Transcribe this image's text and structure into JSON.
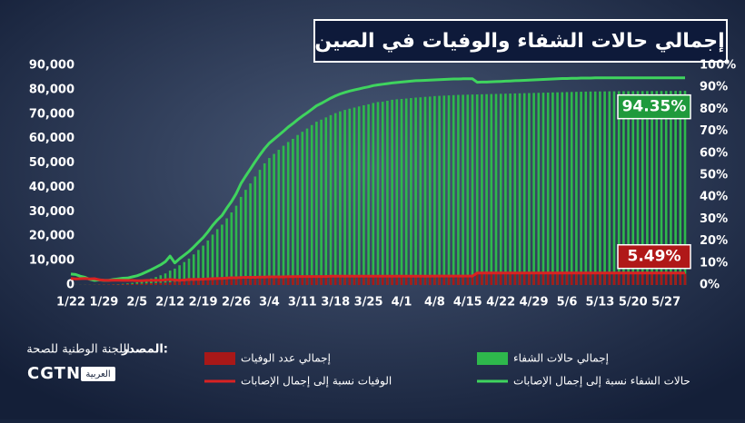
{
  "chart_data": {
    "type": "combo",
    "title": "إجمالي حالات الشفاء والوفيات في الصين",
    "source_label": "المصدر:",
    "source": "اللجنة الوطنية للصحة",
    "logo": "CGTN",
    "logo_sub": "العربية",
    "categories": [
      "1/22",
      null,
      null,
      null,
      null,
      null,
      null,
      "1/29",
      null,
      null,
      null,
      null,
      null,
      null,
      "2/5",
      null,
      null,
      null,
      null,
      null,
      null,
      "2/12",
      null,
      null,
      null,
      null,
      null,
      null,
      "2/19",
      null,
      null,
      null,
      null,
      null,
      null,
      "2/26",
      null,
      null,
      null,
      null,
      null,
      null,
      "3/4",
      null,
      null,
      null,
      null,
      null,
      null,
      "3/11",
      null,
      null,
      null,
      null,
      null,
      null,
      "3/18",
      null,
      null,
      null,
      null,
      null,
      null,
      "3/25",
      null,
      null,
      null,
      null,
      null,
      null,
      "4/1",
      null,
      null,
      null,
      null,
      null,
      null,
      "4/8",
      null,
      null,
      null,
      null,
      null,
      null,
      "4/15",
      null,
      null,
      null,
      null,
      null,
      null,
      "4/22",
      null,
      null,
      null,
      null,
      null,
      null,
      "4/29",
      null,
      null,
      null,
      null,
      null,
      null,
      "5/6",
      null,
      null,
      null,
      null,
      null,
      null,
      "5/13",
      null,
      null,
      null,
      null,
      null,
      null,
      "5/20",
      null,
      null,
      null,
      null,
      null,
      null,
      "5/27",
      null,
      null,
      null,
      null
    ],
    "series": [
      {
        "name": "إجمالي حالات الشفاء",
        "type": "bar",
        "color": "#2eb84c",
        "values": [
          28,
          34,
          38,
          49,
          51,
          60,
          103,
          126,
          171,
          243,
          328,
          475,
          632,
          892,
          1153,
          1540,
          2050,
          2649,
          3281,
          3996,
          4740,
          5911,
          6723,
          8096,
          9419,
          10844,
          12552,
          14376,
          16155,
          18264,
          20659,
          22888,
          24734,
          27323,
          29745,
          32495,
          36117,
          39002,
          41625,
          44462,
          47204,
          49856,
          52045,
          53726,
          55404,
          57065,
          58600,
          59897,
          61475,
          62793,
          64111,
          65541,
          66911,
          67749,
          68679,
          69601,
          70420,
          71150,
          71740,
          72244,
          72703,
          73159,
          73650,
          74051,
          74600,
          74978,
          75100,
          75500,
          75900,
          76100,
          76238,
          76400,
          76600,
          76800,
          76900,
          77100,
          77200,
          77410,
          77500,
          77600,
          77700,
          77800,
          77900,
          77950,
          78000,
          78050,
          78100,
          78150,
          78200,
          78250,
          78300,
          78350,
          78400,
          78450,
          78500,
          78550,
          78600,
          78650,
          78700,
          78750,
          78800,
          78850,
          78900,
          78950,
          79000,
          79050,
          79100,
          79150,
          79200,
          79250,
          79280,
          79300,
          79320,
          79340,
          79360,
          79380,
          79400,
          79410,
          79420,
          79430,
          79440,
          79450,
          79460,
          79470,
          79480,
          79490,
          79500,
          79520,
          79540,
          79560,
          79570
        ]
      },
      {
        "name": "إجمالي عدد الوفيات",
        "type": "bar",
        "color": "#a81818",
        "values": [
          17,
          18,
          26,
          42,
          56,
          82,
          106,
          132,
          170,
          213,
          259,
          304,
          361,
          425,
          490,
          563,
          636,
          722,
          811,
          908,
          1016,
          1113,
          1367,
          1380,
          1523,
          1665,
          1770,
          1868,
          2004,
          2118,
          2236,
          2345,
          2442,
          2592,
          2663,
          2715,
          2744,
          2788,
          2835,
          2870,
          2912,
          2943,
          2981,
          3012,
          3042,
          3070,
          3097,
          3119,
          3136,
          3158,
          3169,
          3176,
          3189,
          3199,
          3213,
          3226,
          3237,
          3245,
          3249,
          3253,
          3259,
          3270,
          3277,
          3281,
          3287,
          3292,
          3295,
          3300,
          3304,
          3305,
          3312,
          3318,
          3322,
          3326,
          3330,
          3331,
          3333,
          3335,
          3337,
          3339,
          3340,
          3341,
          3342,
          3344,
          3345,
          3346,
          4632,
          4632,
          4632,
          4632,
          4632,
          4632,
          4632,
          4632,
          4632,
          4632,
          4632,
          4633,
          4633,
          4633,
          4633,
          4633,
          4633,
          4633,
          4633,
          4633,
          4633,
          4633,
          4633,
          4633,
          4633,
          4633,
          4633,
          4633,
          4634,
          4634,
          4634,
          4634,
          4634,
          4634,
          4634,
          4634,
          4634,
          4634,
          4634,
          4634,
          4634,
          4634,
          4634,
          4634,
          4634
        ]
      },
      {
        "name": "حالات الشفاء نسبة إلى إجمال الإصابات",
        "type": "line",
        "axis": "y2",
        "color": "#3fd45e",
        "end_label": "94.35%",
        "label_color": "#1f9a3c",
        "values": [
          5.0,
          4.8,
          4.0,
          3.5,
          2.6,
          2.1,
          2.3,
          2.1,
          2.1,
          2.5,
          2.8,
          3.1,
          3.2,
          3.7,
          4.2,
          5.0,
          6.0,
          7.0,
          8.1,
          9.2,
          10.6,
          13.2,
          10.1,
          12.0,
          13.6,
          15.3,
          17.3,
          19.5,
          21.6,
          24.2,
          27.1,
          29.6,
          31.7,
          35.0,
          38.0,
          41.6,
          46.2,
          49.6,
          52.8,
          56.1,
          59.2,
          62.1,
          64.6,
          66.4,
          68.2,
          70.0,
          71.9,
          73.5,
          75.3,
          76.9,
          78.4,
          80.0,
          81.6,
          82.7,
          83.9,
          85.1,
          86.1,
          87.0,
          87.7,
          88.3,
          88.8,
          89.3,
          89.8,
          90.2,
          90.8,
          91.1,
          91.4,
          91.7,
          92.0,
          92.2,
          92.4,
          92.6,
          92.8,
          93.0,
          93.1,
          93.2,
          93.3,
          93.4,
          93.5,
          93.6,
          93.7,
          93.8,
          93.8,
          93.9,
          93.9,
          93.9,
          92.3,
          92.4,
          92.4,
          92.5,
          92.6,
          92.7,
          92.8,
          92.9,
          93.0,
          93.1,
          93.2,
          93.3,
          93.4,
          93.5,
          93.6,
          93.7,
          93.8,
          93.9,
          94.0,
          94.0,
          94.1,
          94.1,
          94.2,
          94.2,
          94.2,
          94.3,
          94.3,
          94.3,
          94.3,
          94.3,
          94.3,
          94.3,
          94.3,
          94.3,
          94.3,
          94.3,
          94.3,
          94.35,
          94.35,
          94.35,
          94.35,
          94.35,
          94.35,
          94.35,
          94.35
        ]
      },
      {
        "name": "الوفيات نسبة إلى إجمال الإصابات",
        "type": "line",
        "axis": "y2",
        "color": "#d92222",
        "end_label": "5.49%",
        "label_color": "#b01818",
        "values": [
          3.0,
          2.8,
          2.9,
          3.0,
          2.8,
          2.9,
          2.4,
          2.2,
          2.1,
          2.2,
          2.2,
          2.1,
          2.1,
          2.1,
          2.0,
          2.0,
          2.1,
          2.1,
          2.2,
          2.2,
          2.4,
          2.5,
          2.3,
          2.2,
          2.3,
          2.5,
          2.6,
          2.6,
          2.7,
          2.8,
          2.9,
          3.0,
          3.0,
          3.2,
          3.3,
          3.3,
          3.4,
          3.5,
          3.5,
          3.5,
          3.6,
          3.6,
          3.7,
          3.7,
          3.7,
          3.7,
          3.8,
          3.8,
          3.9,
          3.9,
          3.9,
          3.9,
          3.9,
          3.9,
          3.9,
          4.0,
          4.0,
          4.0,
          4.0,
          4.0,
          4.0,
          4.0,
          4.0,
          4.0,
          4.0,
          4.0,
          4.0,
          4.0,
          4.0,
          4.0,
          4.0,
          4.0,
          4.0,
          4.0,
          4.0,
          4.0,
          4.0,
          4.1,
          4.1,
          4.1,
          4.1,
          4.1,
          4.1,
          4.1,
          4.1,
          4.1,
          5.5,
          5.5,
          5.5,
          5.5,
          5.5,
          5.5,
          5.5,
          5.5,
          5.5,
          5.5,
          5.5,
          5.5,
          5.5,
          5.5,
          5.5,
          5.5,
          5.5,
          5.5,
          5.5,
          5.5,
          5.5,
          5.5,
          5.5,
          5.5,
          5.5,
          5.5,
          5.5,
          5.5,
          5.5,
          5.5,
          5.5,
          5.5,
          5.5,
          5.5,
          5.5,
          5.5,
          5.49,
          5.49,
          5.49,
          5.49,
          5.49,
          5.49,
          5.49,
          5.49,
          5.49
        ]
      }
    ],
    "ylim": [
      0,
      90000
    ],
    "yticks": [
      0,
      {
        "value": 10000,
        "label": "10,000"
      },
      {
        "value": 20000,
        "label": "20,000"
      },
      {
        "value": 30000,
        "label": "30,000"
      },
      {
        "value": 40000,
        "label": "40,000"
      },
      {
        "value": 50000,
        "label": "50,000"
      },
      {
        "value": 60000,
        "label": "60,000"
      },
      {
        "value": 70000,
        "label": "70,000"
      },
      {
        "value": 80000,
        "label": "80,000"
      },
      {
        "value": 90000,
        "label": "90,000"
      }
    ],
    "y2lim": [
      0,
      100
    ],
    "y2ticks": [
      {
        "value": 0,
        "label": "0%"
      },
      {
        "value": 10,
        "label": "10%"
      },
      {
        "value": 20,
        "label": "20%"
      },
      {
        "value": 30,
        "label": "30%"
      },
      {
        "value": 40,
        "label": "40%"
      },
      {
        "value": 50,
        "label": "50%"
      },
      {
        "value": 60,
        "label": "60%"
      },
      {
        "value": 70,
        "label": "70%"
      },
      {
        "value": 80,
        "label": "80%"
      },
      {
        "value": 90,
        "label": "90%"
      },
      {
        "value": 100,
        "label": "100%"
      }
    ],
    "grid": false
  }
}
